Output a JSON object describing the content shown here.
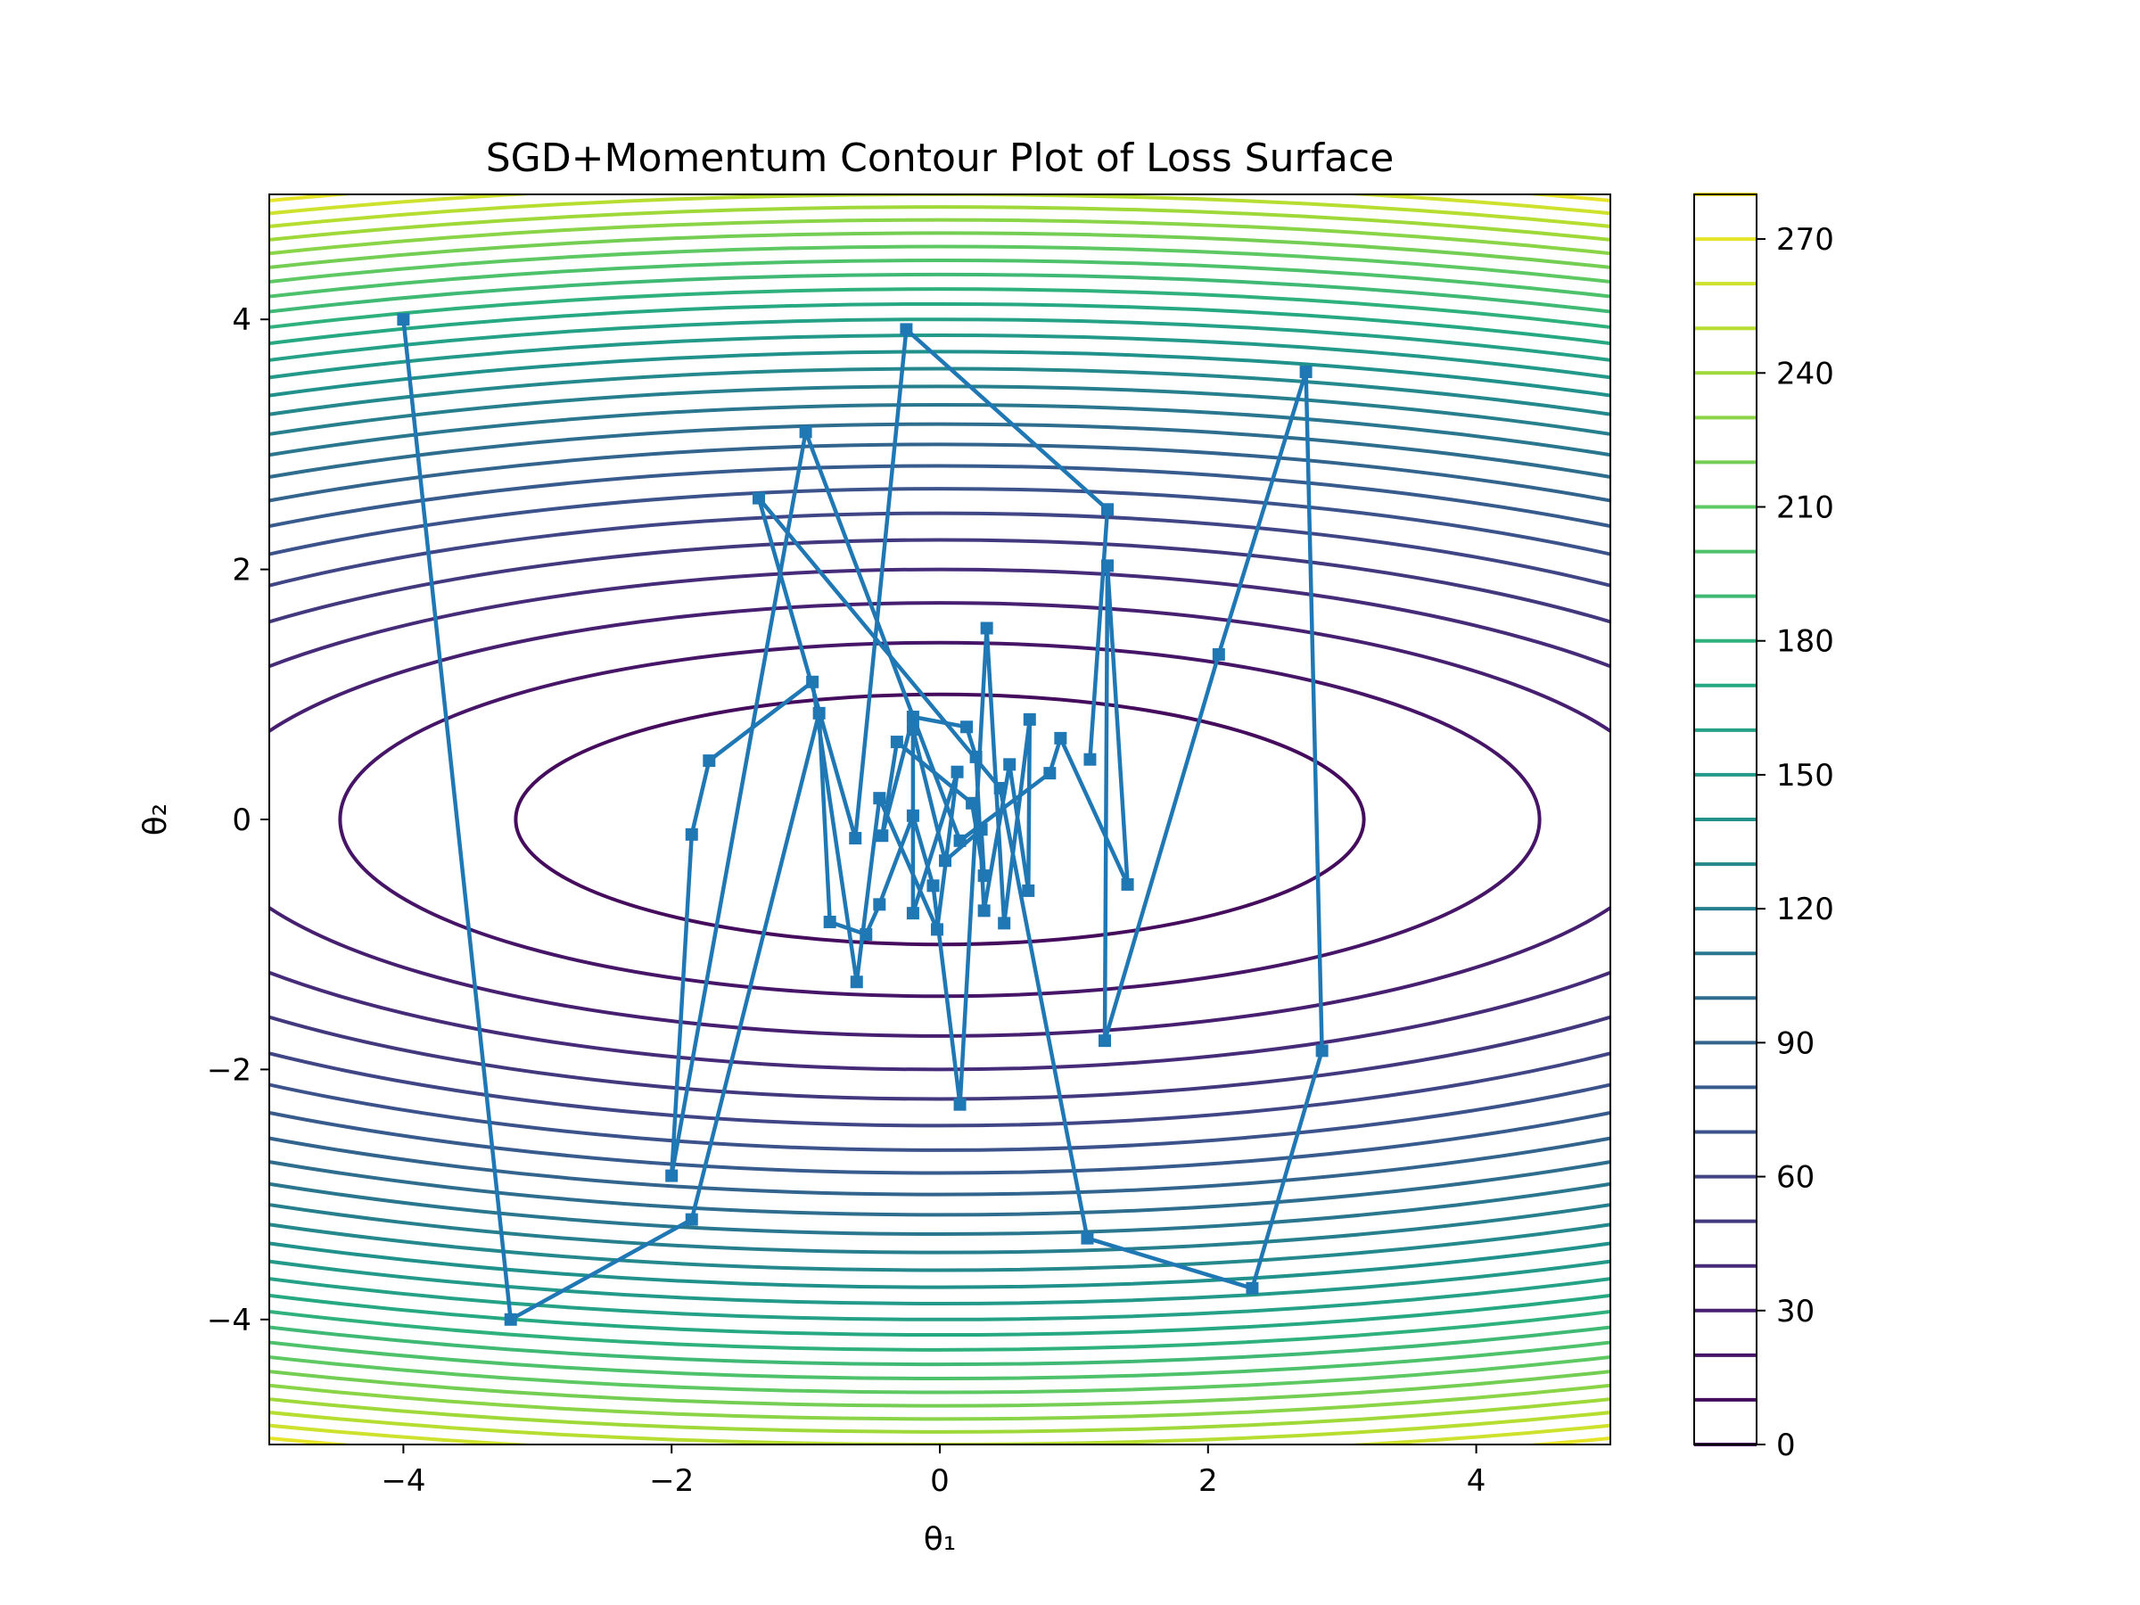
{
  "chart_data": {
    "type": "contour",
    "title": "SGD+Momentum Contour Plot of Loss Surface",
    "xlabel": "θ₁",
    "ylabel": "θ₂",
    "xlim": [
      -5,
      5
    ],
    "ylim": [
      -5,
      5
    ],
    "xticks": [
      -4,
      -2,
      0,
      2,
      4
    ],
    "yticks": [
      -4,
      -2,
      0,
      2,
      4
    ],
    "colorbar": {
      "range": [
        0,
        280
      ],
      "ticks": [
        0,
        30,
        60,
        90,
        120,
        150,
        180,
        210,
        240,
        270
      ],
      "colormap": "viridis"
    },
    "contour": {
      "function": "loss = θ₁² + 10·θ₂²",
      "a": 1,
      "b": 10,
      "levels": [
        0,
        10,
        20,
        30,
        40,
        50,
        60,
        70,
        80,
        90,
        100,
        110,
        120,
        130,
        140,
        150,
        160,
        170,
        180,
        190,
        200,
        210,
        220,
        230,
        240,
        250,
        260,
        270,
        280
      ]
    },
    "series": [
      {
        "color": "#1f77b4",
        "marker": "square",
        "points": [
          [
            -4.0,
            4.0
          ],
          [
            -3.2,
            -4.0
          ],
          [
            -1.85,
            -3.2
          ],
          [
            -0.9,
            0.85
          ],
          [
            -0.82,
            -0.82
          ],
          [
            -0.55,
            -0.92
          ],
          [
            -0.45,
            -0.68
          ],
          [
            -0.2,
            0.03
          ],
          [
            -0.05,
            -0.53
          ],
          [
            0.15,
            -2.28
          ],
          [
            0.35,
            1.53
          ],
          [
            0.48,
            -0.83
          ],
          [
            0.67,
            0.8
          ],
          [
            0.66,
            -0.57
          ],
          [
            0.52,
            0.44
          ],
          [
            0.33,
            -0.73
          ],
          [
            0.27,
            0.5
          ],
          [
            0.2,
            0.74
          ],
          [
            -0.2,
            0.82
          ],
          [
            -0.43,
            -0.13
          ],
          [
            -0.32,
            0.62
          ],
          [
            0.24,
            0.13
          ],
          [
            0.33,
            -0.45
          ],
          [
            0.31,
            -0.08
          ],
          [
            0.04,
            -0.33
          ],
          [
            -0.2,
            0.72
          ],
          [
            -0.2,
            -0.75
          ],
          [
            0.13,
            0.38
          ],
          [
            -0.02,
            -0.88
          ],
          [
            -0.45,
            0.17
          ],
          [
            -0.62,
            -1.3
          ],
          [
            -0.95,
            1.1
          ],
          [
            -1.72,
            0.47
          ],
          [
            -1.85,
            -0.12
          ],
          [
            -2.0,
            -2.85
          ],
          [
            -1.0,
            3.1
          ],
          [
            0.15,
            -0.17
          ],
          [
            0.82,
            0.37
          ],
          [
            0.9,
            0.65
          ],
          [
            1.4,
            -0.52
          ],
          [
            1.25,
            2.03
          ],
          [
            1.23,
            -1.77
          ],
          [
            2.08,
            1.32
          ],
          [
            2.73,
            3.58
          ],
          [
            2.85,
            -1.85
          ],
          [
            2.33,
            -3.75
          ],
          [
            1.1,
            -3.35
          ],
          [
            0.45,
            0.25
          ],
          [
            -1.35,
            2.57
          ],
          [
            -0.63,
            -0.15
          ],
          [
            -0.25,
            3.92
          ],
          [
            1.25,
            2.48
          ],
          [
            1.12,
            0.48
          ]
        ]
      }
    ]
  }
}
